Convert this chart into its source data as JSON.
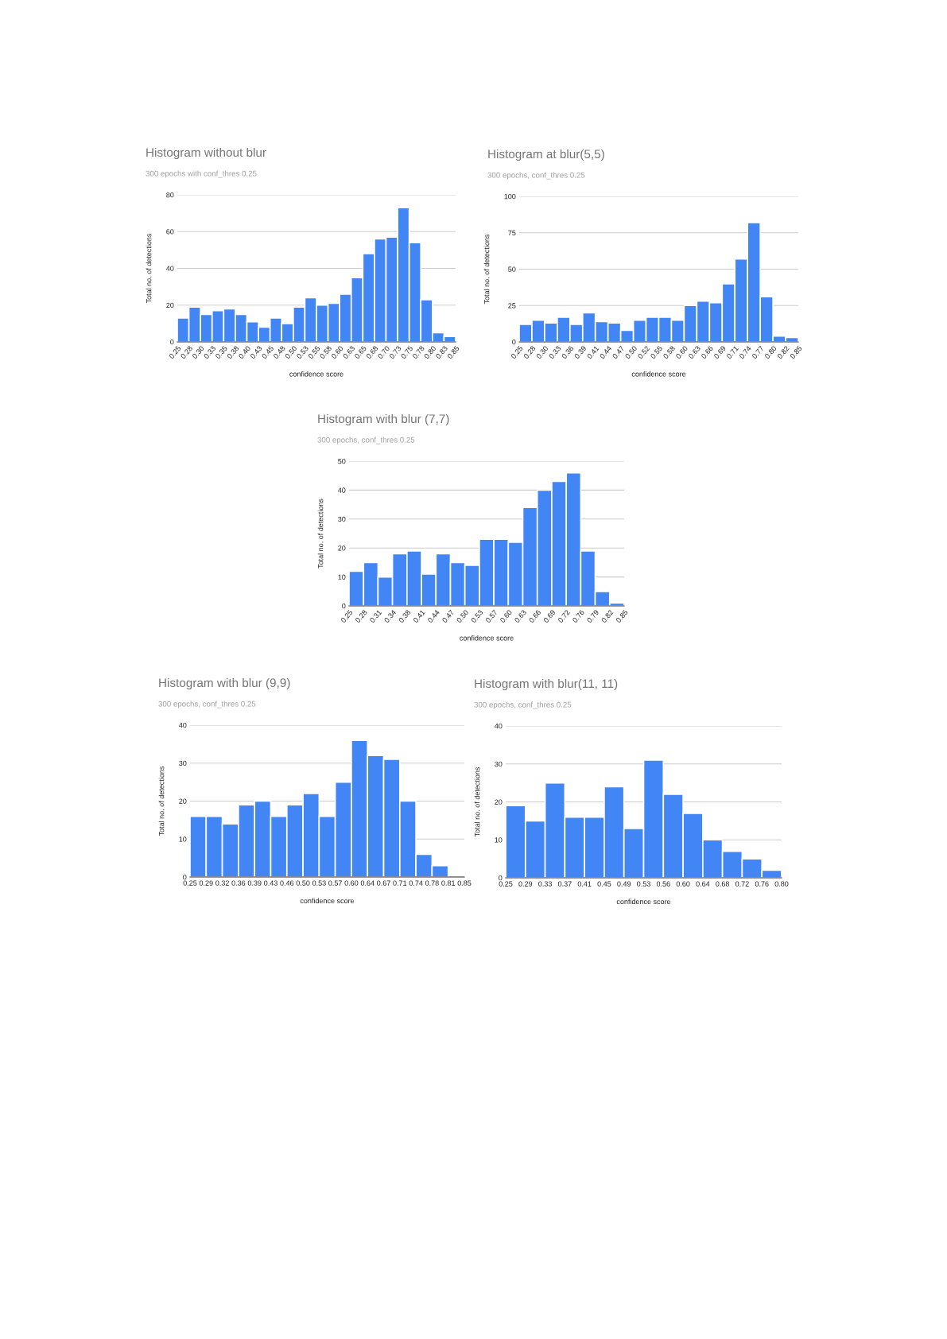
{
  "chart_data": [
    {
      "type": "histogram",
      "title": "Histogram without blur",
      "subtitle": "300 epochs with conf_thres 0.25",
      "xlabel": "confidence score",
      "ylabel": "Total no. of detections",
      "color": "#4285f4",
      "grid": "y",
      "bins": [
        0.25,
        0.275,
        0.3,
        0.325,
        0.35,
        0.375,
        0.4,
        0.425,
        0.45,
        0.475,
        0.5,
        0.525,
        0.55,
        0.575,
        0.6,
        0.625,
        0.65,
        0.675,
        0.7,
        0.725,
        0.75,
        0.775,
        0.8,
        0.825,
        0.85
      ],
      "values": [
        13,
        19,
        15,
        17,
        18,
        15,
        11,
        8,
        13,
        10,
        19,
        24,
        20,
        21,
        26,
        35,
        48,
        56,
        57,
        73,
        54,
        23,
        5,
        3
      ],
      "xlim": [
        0.25,
        0.85
      ],
      "xticks": [
        {
          "value": 0.25,
          "label": "0.25"
        },
        {
          "value": 0.275,
          "label": "0.28"
        },
        {
          "value": 0.3,
          "label": "0.30"
        },
        {
          "value": 0.325,
          "label": "0.33"
        },
        {
          "value": 0.35,
          "label": "0.35"
        },
        {
          "value": 0.375,
          "label": "0.38"
        },
        {
          "value": 0.4,
          "label": "0.40"
        },
        {
          "value": 0.425,
          "label": "0.43"
        },
        {
          "value": 0.45,
          "label": "0.45"
        },
        {
          "value": 0.475,
          "label": "0.48"
        },
        {
          "value": 0.5,
          "label": "0.50"
        },
        {
          "value": 0.525,
          "label": "0.53"
        },
        {
          "value": 0.55,
          "label": "0.55"
        },
        {
          "value": 0.575,
          "label": "0.58"
        },
        {
          "value": 0.6,
          "label": "0.60"
        },
        {
          "value": 0.625,
          "label": "0.63"
        },
        {
          "value": 0.65,
          "label": "0.65"
        },
        {
          "value": 0.675,
          "label": "0.68"
        },
        {
          "value": 0.7,
          "label": "0.70"
        },
        {
          "value": 0.725,
          "label": "0.73"
        },
        {
          "value": 0.75,
          "label": "0.75"
        },
        {
          "value": 0.775,
          "label": "0.78"
        },
        {
          "value": 0.8,
          "label": "0.80"
        },
        {
          "value": 0.825,
          "label": "0.83"
        },
        {
          "value": 0.85,
          "label": "0.85"
        }
      ],
      "ylim": [
        0,
        80
      ],
      "yticks": [
        0,
        20,
        40,
        60,
        80
      ]
    },
    {
      "type": "histogram",
      "title": "Histogram at blur(5,5)",
      "subtitle": "300 epochs, conf_thres 0.25",
      "xlabel": "confidence score",
      "ylabel": "Total no. of detections",
      "color": "#4285f4",
      "grid": "y",
      "bins": [
        0.25,
        0.2773,
        0.3045,
        0.3318,
        0.3591,
        0.3864,
        0.4136,
        0.4409,
        0.4682,
        0.4955,
        0.5227,
        0.55,
        0.5773,
        0.6045,
        0.6318,
        0.6591,
        0.6864,
        0.7136,
        0.7409,
        0.7682,
        0.7955,
        0.8227,
        0.85
      ],
      "values": [
        12,
        15,
        13,
        17,
        12,
        20,
        14,
        13,
        8,
        15,
        17,
        17,
        15,
        25,
        28,
        27,
        40,
        57,
        82,
        31,
        4,
        3
      ],
      "xlim": [
        0.25,
        0.85
      ],
      "xticks": [
        {
          "value": 0.25,
          "label": "0.25"
        },
        {
          "value": 0.2773,
          "label": "0.28"
        },
        {
          "value": 0.3045,
          "label": "0.30"
        },
        {
          "value": 0.3318,
          "label": "0.33"
        },
        {
          "value": 0.3591,
          "label": "0.36"
        },
        {
          "value": 0.3864,
          "label": "0.39"
        },
        {
          "value": 0.4136,
          "label": "0.41"
        },
        {
          "value": 0.4409,
          "label": "0.44"
        },
        {
          "value": 0.4682,
          "label": "0.47"
        },
        {
          "value": 0.4955,
          "label": "0.50"
        },
        {
          "value": 0.5227,
          "label": "0.52"
        },
        {
          "value": 0.55,
          "label": "0.55"
        },
        {
          "value": 0.5773,
          "label": "0.58"
        },
        {
          "value": 0.6045,
          "label": "0.60"
        },
        {
          "value": 0.6318,
          "label": "0.63"
        },
        {
          "value": 0.6591,
          "label": "0.66"
        },
        {
          "value": 0.6864,
          "label": "0.69"
        },
        {
          "value": 0.7136,
          "label": "0.71"
        },
        {
          "value": 0.7409,
          "label": "0.74"
        },
        {
          "value": 0.7682,
          "label": "0.77"
        },
        {
          "value": 0.7955,
          "label": "0.80"
        },
        {
          "value": 0.8227,
          "label": "0.82"
        },
        {
          "value": 0.85,
          "label": "0.85"
        }
      ],
      "ylim": [
        0,
        100
      ],
      "yticks": [
        0,
        25,
        50,
        75,
        100
      ]
    },
    {
      "type": "histogram",
      "title": "Histogram with blur (7,7)",
      "subtitle": "300 epochs, conf_thres 0.25",
      "xlabel": "confidence score",
      "ylabel": "Total no. of detections",
      "color": "#4285f4",
      "grid": "y",
      "bins": [
        0.25,
        0.2816,
        0.3132,
        0.3447,
        0.3763,
        0.4079,
        0.4395,
        0.4711,
        0.5026,
        0.5342,
        0.5658,
        0.5974,
        0.6289,
        0.6605,
        0.6921,
        0.7237,
        0.7553,
        0.7868,
        0.8184,
        0.85
      ],
      "values": [
        12,
        15,
        10,
        18,
        19,
        11,
        18,
        15,
        14,
        23,
        23,
        22,
        34,
        40,
        43,
        46,
        19,
        5,
        1
      ],
      "xlim": [
        0.25,
        0.85
      ],
      "xticks": [
        {
          "value": 0.25,
          "label": "0.25"
        },
        {
          "value": 0.2816,
          "label": "0.28"
        },
        {
          "value": 0.3132,
          "label": "0.31"
        },
        {
          "value": 0.3447,
          "label": "0.34"
        },
        {
          "value": 0.3763,
          "label": "0.38"
        },
        {
          "value": 0.4079,
          "label": "0.41"
        },
        {
          "value": 0.4395,
          "label": "0.44"
        },
        {
          "value": 0.4711,
          "label": "0.47"
        },
        {
          "value": 0.5026,
          "label": "0.50"
        },
        {
          "value": 0.5342,
          "label": "0.53"
        },
        {
          "value": 0.5658,
          "label": "0.57"
        },
        {
          "value": 0.5974,
          "label": "0.60"
        },
        {
          "value": 0.6289,
          "label": "0.63"
        },
        {
          "value": 0.6605,
          "label": "0.66"
        },
        {
          "value": 0.6921,
          "label": "0.69"
        },
        {
          "value": 0.7237,
          "label": "0.72"
        },
        {
          "value": 0.7553,
          "label": "0.76"
        },
        {
          "value": 0.7868,
          "label": "0.79"
        },
        {
          "value": 0.8184,
          "label": "0.82"
        },
        {
          "value": 0.85,
          "label": "0.85"
        }
      ],
      "ylim": [
        0,
        50
      ],
      "yticks": [
        0,
        10,
        20,
        30,
        40,
        50
      ]
    },
    {
      "type": "histogram",
      "title": "Histogram with blur (9,9)",
      "subtitle": "300 epochs, conf_thres 0.25",
      "xlabel": "confidence score",
      "ylabel": "Total no. of detections",
      "color": "#4285f4",
      "grid": "y",
      "bins": [
        0.25,
        0.2853,
        0.3206,
        0.3559,
        0.3912,
        0.4265,
        0.4618,
        0.4971,
        0.5324,
        0.5676,
        0.6029,
        0.6382,
        0.6735,
        0.7088,
        0.7441,
        0.7794,
        0.8147,
        0.85
      ],
      "values": [
        16,
        16,
        14,
        19,
        20,
        16,
        19,
        22,
        16,
        25,
        36,
        32,
        31,
        20,
        6,
        3,
        0
      ],
      "xlim": [
        0.25,
        0.85
      ],
      "xticks": [
        {
          "value": 0.25,
          "label": "0.25"
        },
        {
          "value": 0.2853,
          "label": "0.29"
        },
        {
          "value": 0.3206,
          "label": "0.32"
        },
        {
          "value": 0.3559,
          "label": "0.36"
        },
        {
          "value": 0.3912,
          "label": "0.39"
        },
        {
          "value": 0.4265,
          "label": "0.43"
        },
        {
          "value": 0.4618,
          "label": "0.46"
        },
        {
          "value": 0.4971,
          "label": "0.50"
        },
        {
          "value": 0.5324,
          "label": "0.53"
        },
        {
          "value": 0.5676,
          "label": "0.57"
        },
        {
          "value": 0.6029,
          "label": "0.60"
        },
        {
          "value": 0.6382,
          "label": "0.64"
        },
        {
          "value": 0.6735,
          "label": "0.67"
        },
        {
          "value": 0.7088,
          "label": "0.71"
        },
        {
          "value": 0.7441,
          "label": "0.74"
        },
        {
          "value": 0.7794,
          "label": "0.78"
        },
        {
          "value": 0.8147,
          "label": "0.81"
        },
        {
          "value": 0.85,
          "label": "0.85"
        }
      ],
      "ylim": [
        0,
        40
      ],
      "yticks": [
        0,
        10,
        20,
        30,
        40
      ]
    },
    {
      "type": "histogram",
      "title": "Histogram with blur(11, 11)",
      "subtitle": "300 epochs, conf_thres 0.25",
      "xlabel": "confidence score",
      "ylabel": "Total no. of detections",
      "color": "#4285f4",
      "grid": "y",
      "bins": [
        0.25,
        0.2893,
        0.3286,
        0.3679,
        0.4071,
        0.4464,
        0.4857,
        0.525,
        0.5643,
        0.6036,
        0.6429,
        0.6821,
        0.7214,
        0.7607,
        0.8
      ],
      "values": [
        19,
        15,
        25,
        16,
        16,
        24,
        13,
        31,
        22,
        17,
        10,
        7,
        5,
        2
      ],
      "xlim": [
        0.25,
        0.8
      ],
      "xticks": [
        {
          "value": 0.25,
          "label": "0.25"
        },
        {
          "value": 0.2893,
          "label": "0.29"
        },
        {
          "value": 0.3286,
          "label": "0.33"
        },
        {
          "value": 0.3679,
          "label": "0.37"
        },
        {
          "value": 0.4071,
          "label": "0.41"
        },
        {
          "value": 0.4464,
          "label": "0.45"
        },
        {
          "value": 0.4857,
          "label": "0.49"
        },
        {
          "value": 0.525,
          "label": "0.53"
        },
        {
          "value": 0.5643,
          "label": "0.56"
        },
        {
          "value": 0.6036,
          "label": "0.60"
        },
        {
          "value": 0.6429,
          "label": "0.64"
        },
        {
          "value": 0.6821,
          "label": "0.68"
        },
        {
          "value": 0.7214,
          "label": "0.72"
        },
        {
          "value": 0.7607,
          "label": "0.76"
        },
        {
          "value": 0.8,
          "label": "0.80"
        }
      ],
      "ylim": [
        0,
        40
      ],
      "yticks": [
        0,
        10,
        20,
        30,
        40
      ]
    }
  ]
}
